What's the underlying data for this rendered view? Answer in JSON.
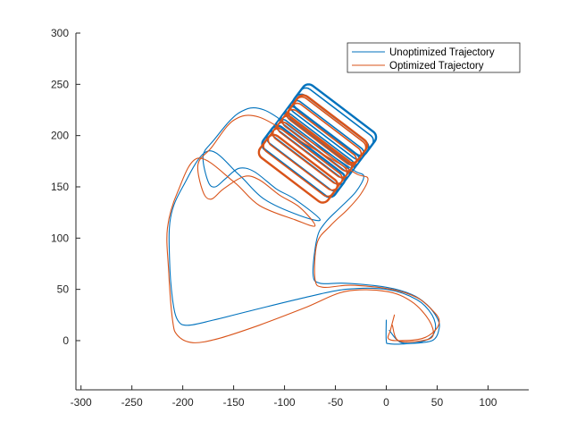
{
  "chart_data": {
    "type": "line",
    "title": "",
    "xlabel": "",
    "ylabel": "",
    "xlim": [
      -305,
      140
    ],
    "ylim": [
      -48,
      300
    ],
    "xticks": [
      -300,
      -250,
      -200,
      -150,
      -100,
      -50,
      0,
      50,
      100
    ],
    "yticks": [
      0,
      50,
      100,
      150,
      200,
      250,
      300
    ],
    "xtick_labels": [
      "-300",
      "-250",
      "-200",
      "-150",
      "-100",
      "-50",
      "0",
      "50",
      "100"
    ],
    "ytick_labels": [
      "0",
      "50",
      "100",
      "150",
      "200",
      "250",
      "300"
    ],
    "grid": false,
    "legend_position": "top-right",
    "series": [
      {
        "name": "Unoptimized Trajectory",
        "color": "#0072BD",
        "base_path": [
          [
            0,
            20
          ],
          [
            0,
            0
          ],
          [
            3,
            -3
          ],
          [
            20,
            -3
          ],
          [
            45,
            0
          ],
          [
            52,
            12
          ],
          [
            50,
            22
          ],
          [
            40,
            35
          ],
          [
            25,
            45
          ],
          [
            0,
            52
          ],
          [
            -40,
            56
          ],
          [
            -65,
            56
          ],
          [
            -72,
            65
          ],
          [
            -68,
            100
          ],
          [
            -60,
            115
          ],
          [
            -45,
            130
          ],
          [
            -30,
            145
          ],
          [
            -22,
            160
          ],
          [
            -30,
            165
          ],
          [
            -45,
            175
          ],
          [
            -80,
            198
          ],
          [
            -120,
            225
          ],
          [
            -145,
            222
          ],
          [
            -170,
            195
          ],
          [
            -180,
            180
          ],
          [
            -175,
            155
          ],
          [
            -168,
            150
          ],
          [
            -158,
            158
          ],
          [
            -145,
            168
          ],
          [
            -130,
            165
          ],
          [
            -108,
            148
          ],
          [
            -90,
            138
          ],
          [
            -65,
            118
          ],
          [
            -85,
            122
          ],
          [
            -120,
            138
          ],
          [
            -145,
            162
          ],
          [
            -175,
            185
          ],
          [
            -200,
            150
          ],
          [
            -212,
            120
          ],
          [
            -213,
            80
          ],
          [
            -210,
            40
          ],
          [
            -205,
            20
          ],
          [
            -195,
            15
          ],
          [
            -170,
            20
          ],
          [
            -130,
            30
          ],
          [
            -80,
            42
          ],
          [
            -40,
            50
          ],
          [
            0,
            50
          ],
          [
            30,
            40
          ],
          [
            45,
            25
          ],
          [
            48,
            10
          ],
          [
            38,
            0
          ],
          [
            15,
            -2
          ],
          [
            3,
            10
          ]
        ],
        "loops": {
          "center": [
            -66,
            195
          ],
          "angle_deg": -37,
          "half_length": 80,
          "half_width": 25,
          "corner_radius": 12,
          "offsets": [
            -46,
            -32,
            -18,
            -4,
            10,
            24,
            38,
            46
          ]
        }
      },
      {
        "name": "Optimized Trajectory",
        "color": "#D95319",
        "base_path": [
          [
            8,
            25
          ],
          [
            4,
            10
          ],
          [
            2,
            2
          ],
          [
            12,
            0
          ],
          [
            35,
            2
          ],
          [
            48,
            10
          ],
          [
            52,
            20
          ],
          [
            45,
            30
          ],
          [
            30,
            42
          ],
          [
            5,
            50
          ],
          [
            -35,
            54
          ],
          [
            -62,
            52
          ],
          [
            -70,
            60
          ],
          [
            -68,
            95
          ],
          [
            -55,
            112
          ],
          [
            -38,
            128
          ],
          [
            -25,
            143
          ],
          [
            -18,
            158
          ],
          [
            -28,
            162
          ],
          [
            -45,
            172
          ],
          [
            -85,
            195
          ],
          [
            -125,
            218
          ],
          [
            -150,
            215
          ],
          [
            -172,
            188
          ],
          [
            -185,
            172
          ],
          [
            -180,
            145
          ],
          [
            -172,
            138
          ],
          [
            -160,
            148
          ],
          [
            -140,
            160
          ],
          [
            -125,
            157
          ],
          [
            -105,
            142
          ],
          [
            -85,
            130
          ],
          [
            -70,
            112
          ],
          [
            -90,
            118
          ],
          [
            -125,
            132
          ],
          [
            -150,
            155
          ],
          [
            -185,
            178
          ],
          [
            -205,
            145
          ],
          [
            -215,
            110
          ],
          [
            -214,
            70
          ],
          [
            -210,
            20
          ],
          [
            -205,
            5
          ],
          [
            -190,
            -2
          ],
          [
            -165,
            2
          ],
          [
            -125,
            15
          ],
          [
            -80,
            32
          ],
          [
            -40,
            48
          ],
          [
            0,
            48
          ],
          [
            25,
            38
          ],
          [
            42,
            20
          ],
          [
            46,
            5
          ],
          [
            35,
            0
          ],
          [
            12,
            0
          ],
          [
            6,
            15
          ]
        ],
        "loops": {
          "center": [
            -72,
            187
          ],
          "angle_deg": -37,
          "half_length": 76,
          "half_width": 24,
          "corner_radius": 12,
          "offsets": [
            -44,
            -30,
            -16,
            -2,
            12,
            26,
            40,
            44
          ]
        }
      }
    ]
  }
}
